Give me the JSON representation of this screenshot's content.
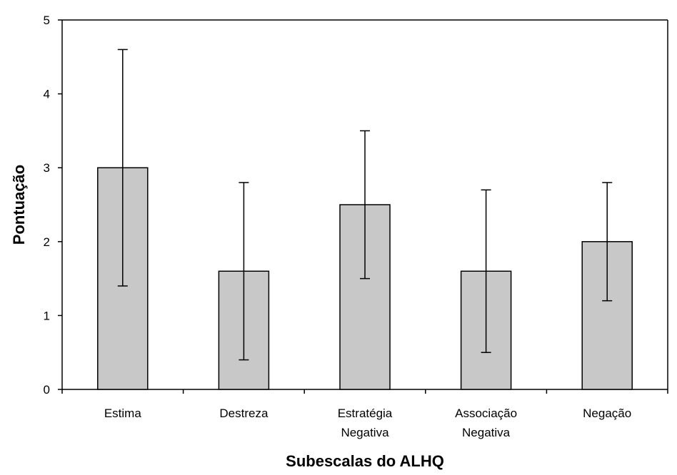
{
  "chart_data": {
    "type": "bar",
    "title": "",
    "xlabel": "Subescalas do ALHQ",
    "ylabel": "Pontuação",
    "ylim": [
      0,
      5
    ],
    "yticks": [
      "0",
      "1",
      "2",
      "3",
      "4",
      "5"
    ],
    "grid": false,
    "categories": [
      [
        "Estima"
      ],
      [
        "Destreza"
      ],
      [
        "Estratégia",
        "Negativa"
      ],
      [
        "Associação",
        "Negativa"
      ],
      [
        "Negação"
      ]
    ],
    "values": [
      3.0,
      1.6,
      2.5,
      1.6,
      2.0
    ],
    "error_low": [
      1.4,
      0.4,
      1.5,
      0.5,
      1.2
    ],
    "error_high": [
      4.6,
      2.8,
      3.5,
      2.7,
      2.8
    ],
    "colors": {
      "bar_fill": "#c8c8c8",
      "bar_stroke": "#000000",
      "axis": "#000000"
    }
  }
}
